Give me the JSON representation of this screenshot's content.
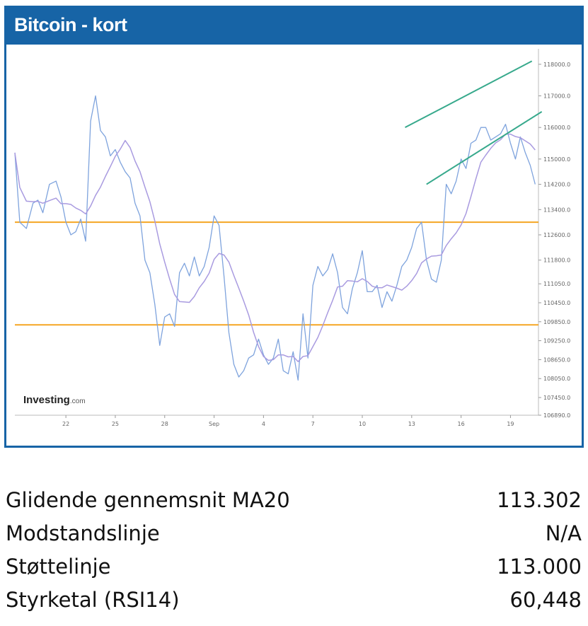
{
  "header": {
    "title": "Bitcoin - kort"
  },
  "logo": {
    "main": "Investing",
    "suffix": ".com"
  },
  "colors": {
    "header_bg": "#1764a6",
    "price": "#7ea3dd",
    "ma": "#a99be0",
    "horizontal": "#f5a623",
    "channel": "#37a98c"
  },
  "chart_data": {
    "type": "line",
    "title": "Bitcoin - kort",
    "ylim": [
      106890,
      118400
    ],
    "x_tick_labels": [
      "22",
      "25",
      "28",
      "Sep",
      "4",
      "7",
      "10",
      "13",
      "16",
      "19"
    ],
    "y_tick_labels": [
      "118000.0",
      "117000.0",
      "116000.0",
      "115000.0",
      "114200.0",
      "113400.0",
      "112600.0",
      "111800.0",
      "111050.0",
      "110450.0",
      "109850.0",
      "109250.0",
      "108650.0",
      "108050.0",
      "107450.0",
      "106890.0"
    ],
    "series": [
      {
        "kind": "price",
        "x": [
          0,
          0.3,
          0.7,
          1.1,
          1.4,
          1.7,
          2.1,
          2.5,
          2.8,
          3.1,
          3.4,
          3.7,
          4,
          4.3,
          4.6,
          4.9,
          5.2,
          5.5,
          5.8,
          6.1,
          6.4,
          6.7,
          7,
          7.3,
          7.6,
          7.9,
          8.2,
          8.5,
          8.8,
          9.1,
          9.4,
          9.7,
          10,
          10.3,
          10.6,
          10.9,
          11.2,
          11.5,
          11.8,
          12.1,
          12.4,
          12.7,
          13,
          13.3,
          13.6,
          13.9,
          14.2,
          14.5,
          14.8,
          15.1,
          15.4,
          15.7,
          16,
          16.3,
          16.6,
          16.9,
          17.2,
          17.5,
          17.8,
          18.1,
          18.4,
          18.7,
          19,
          19.3,
          19.6,
          19.9,
          20.2,
          20.5,
          20.8,
          21.1,
          21.4,
          21.7,
          22,
          22.3,
          22.6,
          22.9,
          23.2,
          23.5,
          23.8,
          24.1,
          24.4,
          24.7,
          25,
          25.3,
          25.6,
          25.9,
          26.2,
          26.5,
          26.8,
          27.1,
          27.4,
          27.7,
          28,
          28.3,
          28.6,
          28.9,
          29.2,
          29.5,
          29.8,
          30.1,
          30.4,
          30.7,
          31,
          31.3,
          31.6
        ],
        "values": [
          115200,
          113000,
          112800,
          113600,
          113700,
          113300,
          114200,
          114300,
          113800,
          113000,
          112600,
          112700,
          113100,
          112400,
          116200,
          117000,
          115900,
          115700,
          115100,
          115300,
          114900,
          114600,
          114400,
          113600,
          113200,
          111800,
          111400,
          110400,
          109100,
          110000,
          110100,
          109700,
          111400,
          111700,
          111300,
          111900,
          111300,
          111600,
          112200,
          113200,
          112900,
          111300,
          109500,
          108500,
          108100,
          108300,
          108700,
          108800,
          109300,
          108800,
          108500,
          108700,
          109300,
          108300,
          108200,
          108900,
          108000,
          110100,
          108700,
          111000,
          111600,
          111300,
          111500,
          112000,
          111400,
          110300,
          110100,
          110900,
          111400,
          112100,
          110800,
          110800,
          111000,
          110300,
          110800,
          110500,
          111000,
          111600,
          111800,
          112200,
          112800,
          113000,
          111800,
          111200,
          111100,
          111800,
          114200,
          113900,
          114300,
          115000,
          114700,
          115500,
          115600,
          116000,
          116000,
          115600,
          115700,
          115800,
          116100,
          115500,
          115000,
          115700,
          115200,
          114800,
          114200
        ],
        "x_tick_positions": [
          3.1,
          6.1,
          9.1,
          12.1,
          15.1,
          18.1,
          21.1,
          24.1,
          27.1,
          30.1
        ]
      }
    ],
    "horizontal_lines": [
      113000,
      109750
    ],
    "channel_lines": [
      {
        "x": [
          23.7,
          31.4
        ],
        "y": [
          116000,
          118100
        ]
      },
      {
        "x": [
          25,
          32
        ],
        "y": [
          114200,
          116500
        ]
      }
    ]
  },
  "stats": {
    "rows": [
      {
        "label": "Glidende gennemsnit MA20",
        "value": "113.302"
      },
      {
        "label": "Modstandslinje",
        "value": "N/A"
      },
      {
        "label": "Støttelinje",
        "value": "113.000"
      },
      {
        "label": "Styrketal (RSI14)",
        "value": "60,448"
      }
    ]
  }
}
